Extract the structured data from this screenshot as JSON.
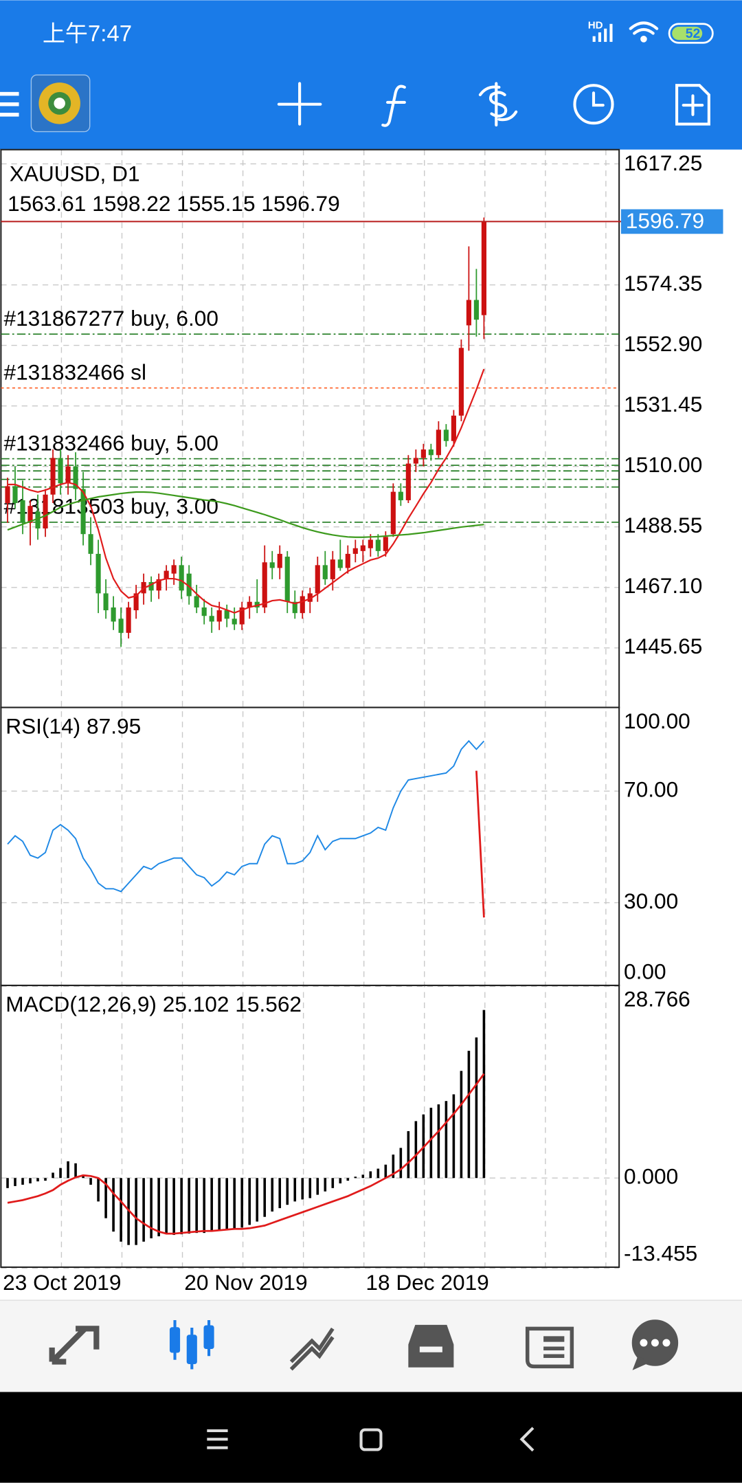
{
  "status_bar": {
    "time": "上午7:47",
    "network": "HD",
    "battery": "52"
  },
  "chart": {
    "type": "candlestick",
    "symbol": "XAUUSD, D1",
    "up_color": "#cc1111",
    "down_color": "#2e9a2e",
    "xlim": [
      -1,
      81
    ],
    "ylim": [
      1424.55,
      1622.28
    ],
    "yticks": [
      1617.25,
      1574.35,
      {
        "value": 1552.9,
        "label": "1552.90"
      },
      1531.45,
      {
        "value": 1510,
        "label": "1510.00"
      },
      1488.55,
      {
        "value": 1467.1,
        "label": "1467.10"
      },
      1445.65
    ],
    "grid": true,
    "candles": [
      [
        1497,
        1506,
        1490,
        1503
      ],
      [
        1503,
        1510,
        1495,
        1497
      ],
      [
        1498,
        1505,
        1486,
        1490
      ],
      [
        1490,
        1498,
        1482,
        1496
      ],
      [
        1494,
        1500,
        1484,
        1488
      ],
      [
        1488,
        1502,
        1485,
        1500
      ],
      [
        1500,
        1516,
        1497,
        1513
      ],
      [
        1513,
        1516,
        1500,
        1504
      ],
      [
        1504,
        1514,
        1500,
        1510
      ],
      [
        1510,
        1515,
        1498,
        1502
      ],
      [
        1502,
        1508,
        1482,
        1486
      ],
      [
        1486,
        1492,
        1475,
        1479
      ],
      [
        1479,
        1484,
        1458,
        1465
      ],
      [
        1465,
        1470,
        1456,
        1459
      ],
      [
        1460,
        1464,
        1452,
        1455
      ],
      [
        1456,
        1460,
        1446,
        1451
      ],
      [
        1451,
        1462,
        1449,
        1460
      ],
      [
        1459,
        1468,
        1456,
        1465
      ],
      [
        1465,
        1472,
        1461,
        1469
      ],
      [
        1469,
        1471,
        1462,
        1466
      ],
      [
        1466,
        1472,
        1463,
        1470
      ],
      [
        1470,
        1475,
        1466,
        1473
      ],
      [
        1472,
        1477,
        1468,
        1475
      ],
      [
        1475,
        1478,
        1463,
        1466
      ],
      [
        1472,
        1475,
        1461,
        1464
      ],
      [
        1464,
        1468,
        1458,
        1460
      ],
      [
        1460,
        1463,
        1454,
        1457
      ],
      [
        1457,
        1460,
        1451,
        1455
      ],
      [
        1455,
        1462,
        1452,
        1459
      ],
      [
        1459,
        1461,
        1453,
        1456
      ],
      [
        1456,
        1460,
        1452,
        1454
      ],
      [
        1454,
        1462,
        1452,
        1460
      ],
      [
        1460,
        1464,
        1456,
        1462
      ],
      [
        1462,
        1470,
        1458,
        1460
      ],
      [
        1460,
        1482,
        1458,
        1476
      ],
      [
        1476,
        1480,
        1470,
        1474
      ],
      [
        1474,
        1482,
        1470,
        1479
      ],
      [
        1478,
        1480,
        1458,
        1462
      ],
      [
        1462,
        1466,
        1456,
        1458
      ],
      [
        1458,
        1466,
        1456,
        1464
      ],
      [
        1462,
        1467,
        1458,
        1465
      ],
      [
        1465,
        1478,
        1462,
        1475
      ],
      [
        1475,
        1480,
        1468,
        1470
      ],
      [
        1470,
        1480,
        1466,
        1477
      ],
      [
        1477,
        1484,
        1473,
        1474
      ],
      [
        1474,
        1482,
        1472,
        1479
      ],
      [
        1479,
        1484,
        1476,
        1481
      ],
      [
        1480,
        1484,
        1476,
        1482
      ],
      [
        1481,
        1486,
        1478,
        1484
      ],
      [
        1484,
        1486,
        1478,
        1480
      ],
      [
        1480,
        1487,
        1478,
        1485
      ],
      [
        1486,
        1504,
        1485,
        1501
      ],
      [
        1501,
        1504,
        1496,
        1498
      ],
      [
        1498,
        1514,
        1497,
        1511
      ],
      [
        1511,
        1516,
        1508,
        1513
      ],
      [
        1513,
        1518,
        1510,
        1516
      ],
      [
        1516,
        1518,
        1512,
        1514
      ],
      [
        1514,
        1526,
        1513,
        1523
      ],
      [
        1523,
        1525,
        1517,
        1519
      ],
      [
        1519,
        1530,
        1517,
        1528
      ],
      [
        1528,
        1555,
        1526,
        1552
      ],
      [
        1560,
        1588,
        1551,
        1569
      ],
      [
        1569,
        1580,
        1556,
        1562
      ],
      [
        1563.61,
        1598.22,
        1555.15,
        1596.79
      ]
    ],
    "moving_averages": [
      {
        "color": "#e01b1b",
        "values": [
          1503.6,
          1503.6,
          1502.6,
          1501.6,
          1500.9,
          1501.6,
          1502.6,
          1503.6,
          1504.3,
          1503.6,
          1500.9,
          1495.9,
          1487.6,
          1477.5,
          1470.2,
          1465.8,
          1463.4,
          1464.1,
          1466.8,
          1468.1,
          1469.5,
          1470.2,
          1470.2,
          1469.5,
          1467.5,
          1464.8,
          1462.4,
          1460.7,
          1460.1,
          1459.1,
          1458.1,
          1459.1,
          1460.1,
          1460.7,
          1461.4,
          1462.4,
          1462.7,
          1462.1,
          1461.4,
          1462.1,
          1463.1,
          1464.8,
          1466.8,
          1468.8,
          1470.8,
          1472.8,
          1474.2,
          1475.5,
          1476.8,
          1477.5,
          1478.8,
          1482.5,
          1486.9,
          1491.6,
          1495.9,
          1500.3,
          1504.3,
          1509,
          1513,
          1517.7,
          1523.7,
          1530.5,
          1537.2,
          1544.5
        ]
      },
      {
        "color": "#3c9a1c",
        "values": [
          1487.5,
          1488.5,
          1489.5,
          1490.5,
          1491.5,
          1492.5,
          1494,
          1495.5,
          1496.5,
          1497.3,
          1498,
          1498.6,
          1499.2,
          1499.6,
          1500,
          1500.4,
          1500.7,
          1500.9,
          1500.9,
          1500.8,
          1500.5,
          1500.1,
          1499.7,
          1499.3,
          1498.9,
          1498.5,
          1498.1,
          1497.8,
          1497.4,
          1496.8,
          1496.1,
          1495.3,
          1494.5,
          1493.7,
          1492.9,
          1492,
          1491.1,
          1490.1,
          1489.2,
          1488.3,
          1487.5,
          1486.8,
          1486.2,
          1485.7,
          1485.3,
          1485,
          1484.9,
          1484.9,
          1485,
          1485.1,
          1485.3,
          1485.5,
          1485.7,
          1485.9,
          1486.2,
          1486.5,
          1486.9,
          1487.3,
          1487.7,
          1488.1,
          1488.5,
          1488.8,
          1489.1,
          1489.4
        ]
      }
    ],
    "current_price_color": "#b81c1c",
    "current_price_box_color": "#2f8fe8",
    "order_lines": [
      {
        "label": "#131867277 buy, 6.00",
        "price": 1556.9,
        "color": "#1f7a1f",
        "style": "dash-dot"
      },
      {
        "label": "#131832466 sl",
        "price": 1537.8,
        "color": "#ff5a1f",
        "style": "dot"
      },
      {
        "label": "#131832466 buy, 5.00",
        "price": 1512.7,
        "color": "#1f7a1f",
        "style": "dash-dot"
      },
      {
        "price": 1510.4,
        "color": "#1f7a1f",
        "style": "dash-dot"
      },
      {
        "price": 1508.4,
        "color": "#1f7a1f",
        "style": "dash-dot"
      },
      {
        "price": 1505.4,
        "color": "#1f7a1f",
        "style": "dash-dot"
      },
      {
        "price": 1502.7,
        "color": "#1f7a1f",
        "style": "dash-dot"
      },
      {
        "label": "#131813503 buy, 3.00",
        "price": 1490.2,
        "color": "#1f7a1f",
        "style": "dash-dot"
      }
    ],
    "x_labels": [
      {
        "index": 0,
        "label": "23 Oct 2019"
      },
      {
        "index": 24,
        "label": "20 Nov 2019"
      },
      {
        "index": 48,
        "label": "18 Dec 2019"
      }
    ]
  },
  "rsi": {
    "type": "line",
    "name": "RSI(14)",
    "color": "#1e88e5",
    "ylim": [
      0,
      100
    ],
    "yticks": [
      {
        "value": 100,
        "label": "100.00"
      },
      {
        "value": 70,
        "label": "70.00"
      },
      {
        "value": 30,
        "label": "30.00"
      },
      {
        "value": 0,
        "label": "0.00"
      }
    ],
    "values": [
      51,
      54,
      52,
      47,
      46,
      48,
      56,
      58,
      56,
      53,
      46,
      42,
      37,
      35,
      35,
      34,
      37,
      40,
      43,
      42,
      44,
      45,
      46,
      46,
      43,
      40,
      39,
      36,
      38,
      41,
      40,
      43,
      44,
      44,
      51,
      54,
      53,
      44,
      44,
      45,
      48,
      54,
      49,
      52,
      53,
      53,
      53,
      54,
      55,
      57,
      56,
      64,
      70,
      74,
      74.5,
      75,
      75.5,
      76,
      76.5,
      79,
      85,
      88,
      85,
      87.95
    ],
    "trend_line": {
      "color": "#e01b1b",
      "x": [
        62,
        63
      ],
      "values": [
        77.3,
        24.7
      ]
    }
  },
  "macd": {
    "type": "bar",
    "name": "MACD(12,26,9)",
    "color": "#000000",
    "signal_color": "#e01b1b",
    "ylim": [
      -13.455,
      28.766
    ],
    "yticks": [
      28.766,
      {
        "value": 0,
        "label": "0.000"
      },
      -13.455
    ],
    "histogram": [
      -1.5,
      -1.2,
      -1,
      -0.8,
      -0.5,
      -0.4,
      0.8,
      1.5,
      2.5,
      2.2,
      0.5,
      -1,
      -3.5,
      -6,
      -8,
      -9.5,
      -10,
      -10,
      -9.5,
      -9,
      -8.7,
      -8.4,
      -8.5,
      -8.4,
      -8.3,
      -8.2,
      -8.2,
      -8,
      -7.8,
      -7.6,
      -7.5,
      -7.4,
      -7,
      -6.5,
      -5.8,
      -5,
      -4.5,
      -4,
      -3.5,
      -3.2,
      -3,
      -2.5,
      -2,
      -1.5,
      -0.8,
      -0.4,
      0.2,
      0.5,
      1,
      1.4,
      2,
      3.5,
      4.5,
      7,
      8.5,
      9.5,
      10.5,
      11,
      11.5,
      12.5,
      16,
      19,
      21,
      25.102
    ],
    "signal": [
      -3.7,
      -3.5,
      -3.3,
      -3,
      -2.7,
      -2.3,
      -1.8,
      -1,
      -0.4,
      0.1,
      0.4,
      0.3,
      0,
      -0.9,
      -2.3,
      -3.5,
      -4.8,
      -6,
      -6.8,
      -7.5,
      -8,
      -8.3,
      -8.3,
      -8.2,
      -8.1,
      -8,
      -7.9,
      -7.9,
      -7.8,
      -7.7,
      -7.6,
      -7.6,
      -7.5,
      -7.3,
      -7.1,
      -6.7,
      -6.3,
      -5.9,
      -5.5,
      -5.1,
      -4.7,
      -4.3,
      -3.9,
      -3.5,
      -3.1,
      -2.7,
      -2.2,
      -1.7,
      -1.2,
      -0.6,
      0,
      0.6,
      1.3,
      2.3,
      3.4,
      4.6,
      5.8,
      7,
      8.3,
      9.6,
      11,
      12.5,
      14,
      15.562
    ]
  }
}
